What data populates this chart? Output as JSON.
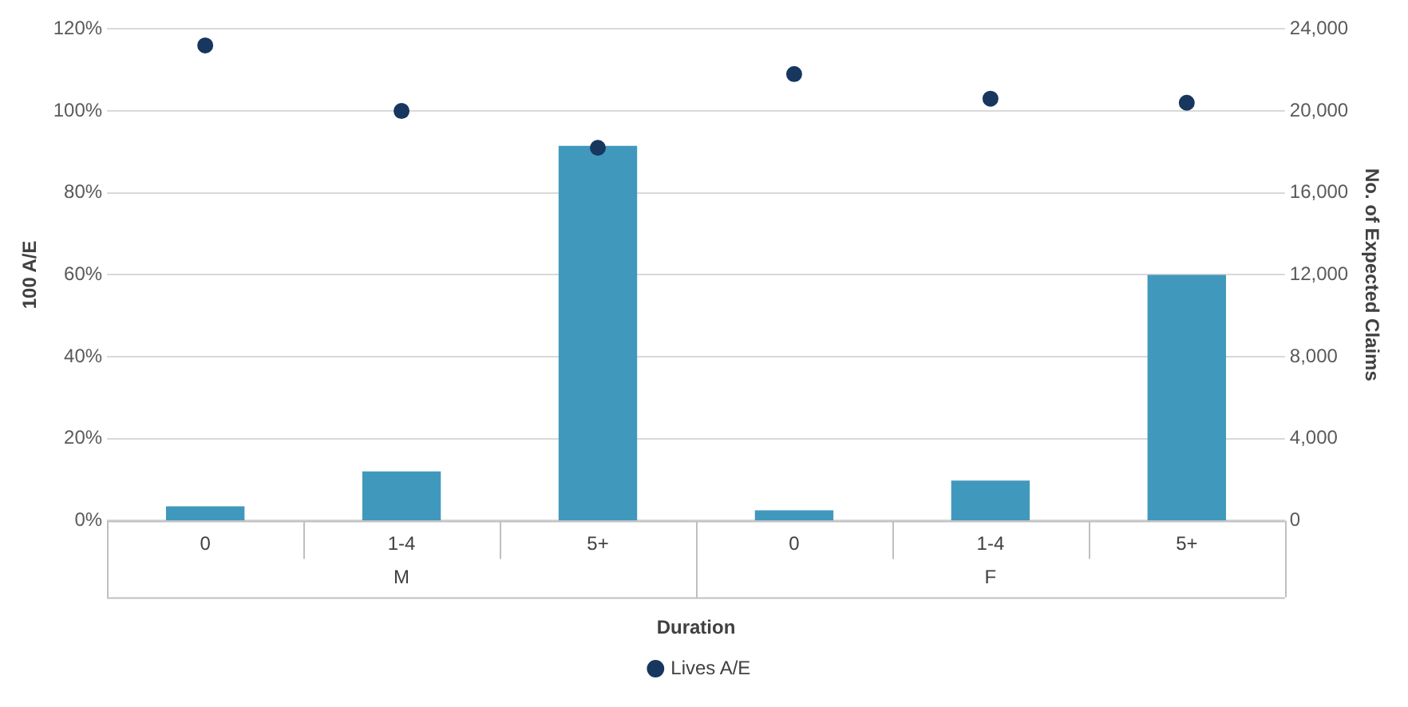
{
  "chart_data": {
    "type": "bar",
    "xlabel": "Duration",
    "ylabel": "100 A/E",
    "y2label": "No. of Expected Claims",
    "categories": [
      "0",
      "1-4",
      "5+",
      "0",
      "1-4",
      "5+"
    ],
    "annotations": [
      "M",
      "F"
    ],
    "series": [
      {
        "axis": "y2",
        "color": "#4198bd",
        "values": [
          700,
          2400,
          18300,
          500,
          1950,
          12000
        ]
      },
      {
        "type": "scatter",
        "axis": "y",
        "name": "Lives A/E",
        "color": "#17375e",
        "values": [
          116,
          100,
          91,
          109,
          103,
          102
        ]
      }
    ],
    "ylim": [
      0,
      120
    ],
    "yticks": [
      {
        "value": 0,
        "label": "0%"
      },
      {
        "value": 20,
        "label": "20%"
      },
      {
        "value": 40,
        "label": "40%"
      },
      {
        "value": 60,
        "label": "60%"
      },
      {
        "value": 80,
        "label": "80%"
      },
      {
        "value": 100,
        "label": "100%"
      },
      {
        "value": 120,
        "label": "120%"
      }
    ],
    "y2lim": [
      0,
      24000
    ],
    "y2ticks": [
      {
        "value": 0,
        "label": "0"
      },
      {
        "value": 4000,
        "label": "4,000"
      },
      {
        "value": 8000,
        "label": "8,000"
      },
      {
        "value": 12000,
        "label": "12,000"
      },
      {
        "value": 16000,
        "label": "16,000"
      },
      {
        "value": 20000,
        "label": "20,000"
      },
      {
        "value": 24000,
        "label": "24,000"
      }
    ],
    "grid": "y",
    "legend": "bottom",
    "marker": "circle"
  }
}
